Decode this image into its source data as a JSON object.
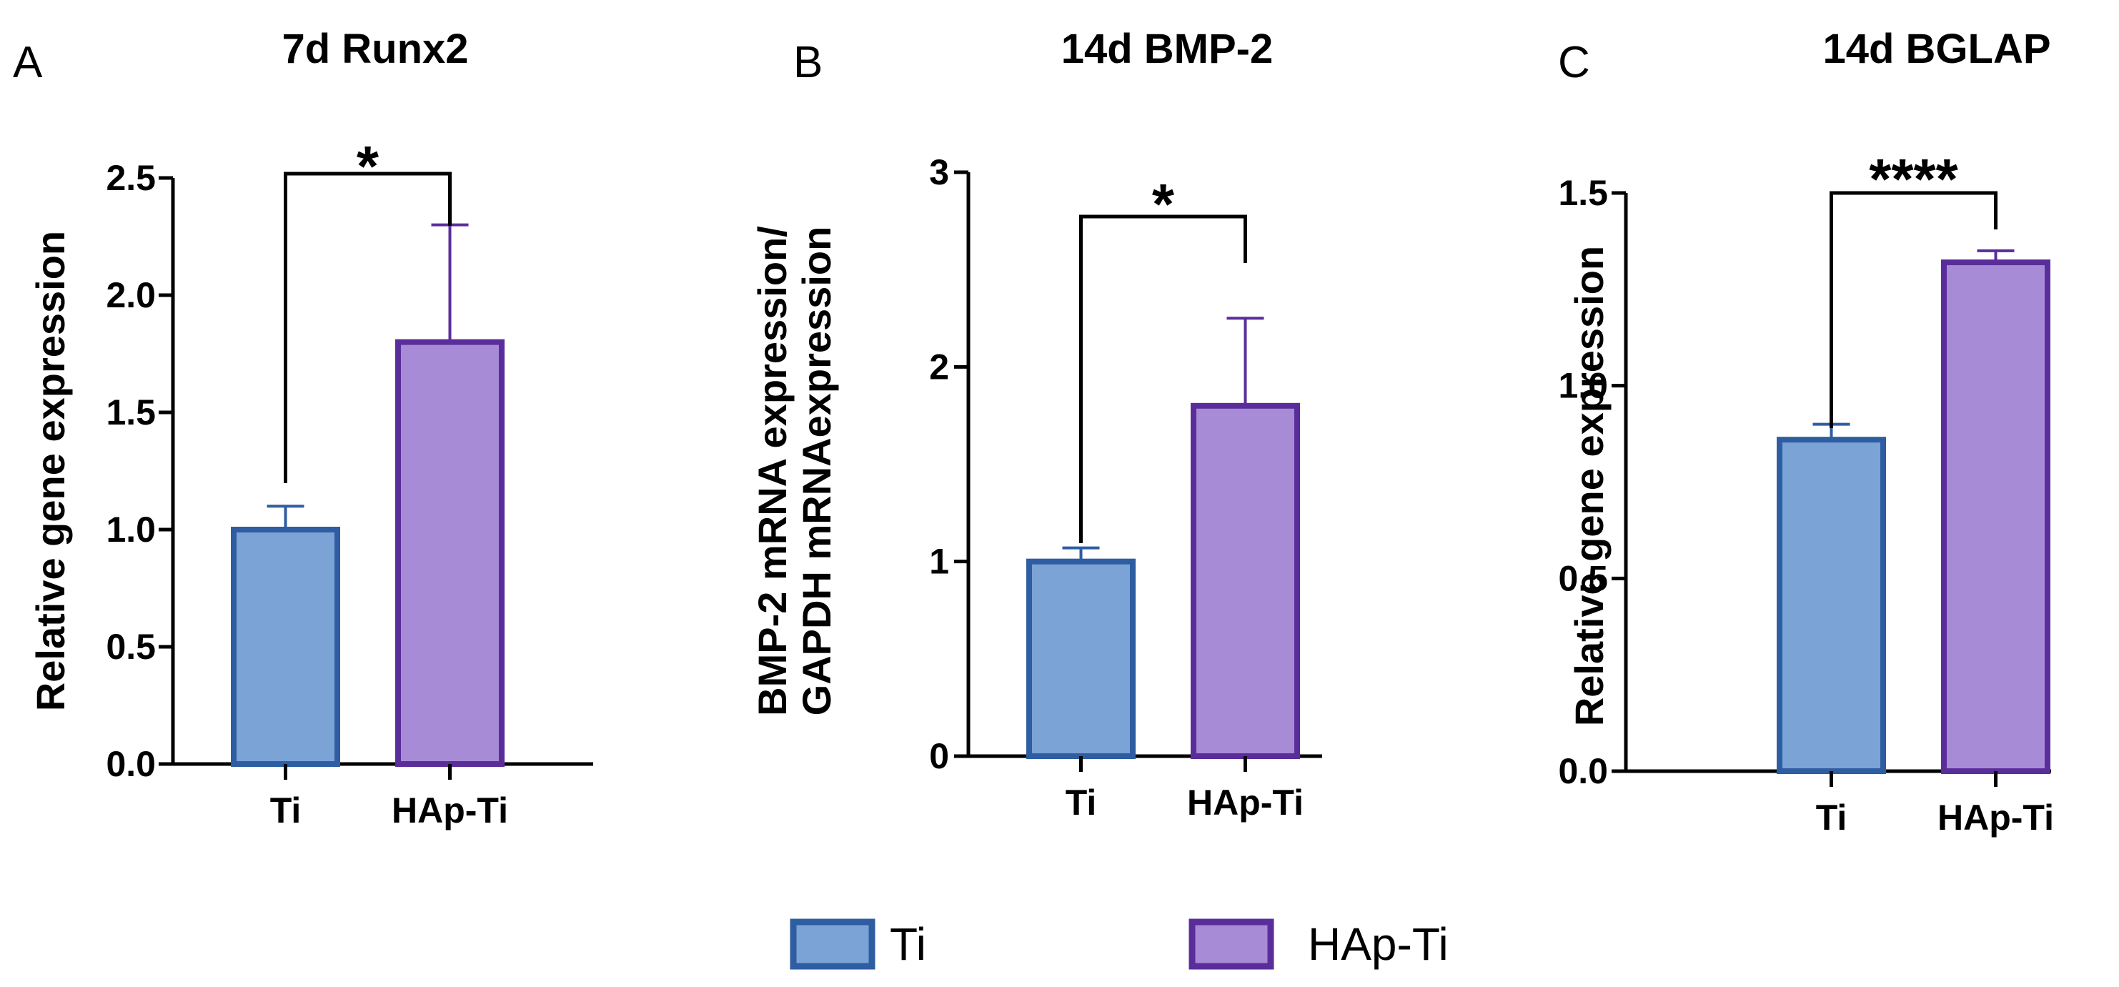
{
  "chart_data": [
    {
      "type": "bar",
      "panel": "A",
      "title": "7d Runx2",
      "ylabel": "Relative gene expression",
      "categories": [
        "Ti",
        "HAp-Ti"
      ],
      "values": [
        1.0,
        1.8
      ],
      "errors": [
        0.1,
        0.5
      ],
      "ylim": [
        0,
        2.5
      ],
      "yticks": [
        0.0,
        0.5,
        1.0,
        1.5,
        2.0,
        2.5
      ],
      "ytick_labels": [
        "0.0",
        "0.5",
        "1.0",
        "1.5",
        "2.0",
        "2.5"
      ],
      "significance": "*"
    },
    {
      "type": "bar",
      "panel": "B",
      "title": "14d BMP-2",
      "ylabel": [
        "BMP-2 mRNA expression/",
        "GAPDH mRNAexpression"
      ],
      "categories": [
        "Ti",
        "HAp-Ti"
      ],
      "values": [
        1.0,
        1.8
      ],
      "errors": [
        0.07,
        0.45
      ],
      "ylim": [
        0,
        3
      ],
      "yticks": [
        0,
        1,
        2,
        3
      ],
      "ytick_labels": [
        "0",
        "1",
        "2",
        "3"
      ],
      "significance": "*"
    },
    {
      "type": "bar",
      "panel": "C",
      "title": "14d BGLAP",
      "ylabel": "Relative gene expression",
      "categories": [
        "Ti",
        "HAp-Ti"
      ],
      "values": [
        0.86,
        1.32
      ],
      "errors": [
        0.04,
        0.03
      ],
      "ylim": [
        0,
        1.5
      ],
      "yticks": [
        0.0,
        0.5,
        1.0,
        1.5
      ],
      "ytick_labels": [
        "0.0",
        "0.5",
        "1.0",
        "1.5"
      ],
      "significance": "****"
    }
  ],
  "legend": {
    "position": "bottom-center",
    "items": [
      {
        "label": "Ti",
        "fill": "#7ba3d6",
        "stroke": "#2e5da2"
      },
      {
        "label": "HAp-Ti",
        "fill": "#a88bd6",
        "stroke": "#5a2e9a"
      }
    ]
  },
  "colors": {
    "ti_fill": "#7ba3d6",
    "ti_stroke": "#2e5da2",
    "hap_fill": "#a88bd6",
    "hap_stroke": "#5a2e9a",
    "axis": "#000000"
  }
}
